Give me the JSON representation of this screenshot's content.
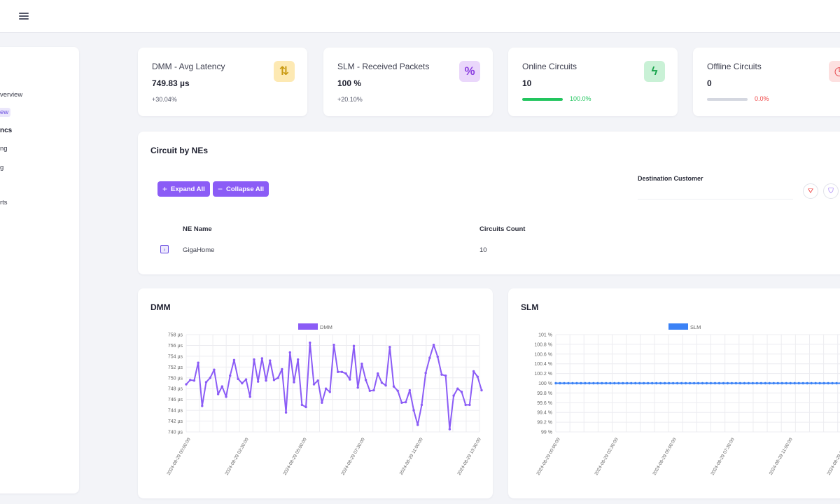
{
  "sidebar": {
    "items": [
      {
        "label": "verview",
        "style": "normal"
      },
      {
        "label": "ew",
        "style": "active"
      },
      {
        "label": "ncs",
        "style": "bold"
      },
      {
        "label": "ng",
        "style": "normal"
      },
      {
        "label": "g",
        "style": "normal"
      },
      {
        "label": "rts",
        "style": "normal"
      }
    ]
  },
  "kpis": [
    {
      "title": "DMM - Avg Latency",
      "value": "749.83 µs",
      "delta": "+30.04%",
      "icon": "arrows-up-down-icon",
      "icon_glyph": "⇅",
      "icon_bg": "#fde9b3",
      "icon_color": "#c99a13"
    },
    {
      "title": "SLM - Received Packets",
      "value": "100 %",
      "delta": "+20.10%",
      "icon": "percent-icon",
      "icon_glyph": "%",
      "icon_bg": "#ead7fb",
      "icon_color": "#8b3fe0"
    },
    {
      "title": "Online Circuits",
      "value": "10",
      "progress": 1.0,
      "progress_label": "100.0%",
      "progress_color": "#22c55e",
      "icon": "bolt-icon",
      "icon_glyph": "ϟ",
      "icon_bg": "#c9f1d6",
      "icon_color": "#16a34a"
    },
    {
      "title": "Offline Circuits",
      "value": "0",
      "progress": 0.0,
      "progress_label": "0.0%",
      "progress_color": "#ef4444",
      "icon": "clock-icon",
      "icon_glyph": "◷",
      "icon_bg": "#fde0e0",
      "icon_color": "#e5484d"
    }
  ],
  "circuits": {
    "title": "Circuit by NEs",
    "expand_label": "Expand All",
    "collapse_label": "Collapse All",
    "filter_label": "Destination Customer",
    "columns": [
      "NE Name",
      "Circuits Count"
    ],
    "rows": [
      {
        "ne": "GigaHome",
        "count": "10"
      }
    ]
  },
  "colors": {
    "accent": "#8b5cf6",
    "dmm_line": "#8b5cf6",
    "slm_line": "#3b82f6"
  },
  "chart_data": [
    {
      "type": "line",
      "title": "DMM",
      "series": [
        {
          "name": "DMM",
          "values": [
            748.8,
            749.6,
            749.5,
            752.8,
            744.8,
            749.2,
            750.0,
            751.5,
            747.0,
            748.4,
            746.5,
            750.4,
            753.3,
            749.8,
            749.0,
            749.7,
            746.5,
            753.4,
            749.3,
            753.6,
            749.5,
            753.2,
            749.6,
            750.0,
            751.6,
            743.6,
            754.7,
            749.2,
            753.4,
            745.0,
            744.6,
            756.5,
            748.8,
            749.5,
            745.4,
            748.0,
            747.4,
            756.1,
            751.1,
            751.1,
            750.8,
            749.7,
            755.9,
            748.2,
            752.6,
            749.6,
            747.6,
            747.7,
            750.8,
            749.1,
            748.6,
            755.7,
            748.4,
            747.6,
            745.4,
            745.5,
            747.7,
            744.0,
            741.3,
            745.0,
            750.9,
            753.7,
            756.1,
            753.9,
            750.6,
            750.4,
            740.5,
            746.7,
            748.0,
            747.4,
            745.0,
            745.0,
            751.2,
            750.2,
            747.7
          ]
        }
      ],
      "x_tick_labels": [
        "2024-08-29 00:00:00",
        "2024-08-29 02:30:00",
        "2024-08-29 05:00:00",
        "2024-08-29 07:30:00",
        "2024-08-29 11:00:00",
        "2024-08-29 13:30:00"
      ],
      "y_tick_labels": [
        "758 µs",
        "756 µs",
        "754 µs",
        "752 µs",
        "750 µs",
        "748 µs",
        "746 µs",
        "744 µs",
        "742 µs",
        "740 µs"
      ],
      "ylim": [
        740,
        758
      ],
      "legend": "top-center",
      "grid": true
    },
    {
      "type": "line",
      "title": "SLM",
      "series": [
        {
          "name": "SLM",
          "values": [
            100,
            100,
            100,
            100,
            100,
            100,
            100,
            100,
            100,
            100,
            100,
            100,
            100,
            100,
            100,
            100,
            100,
            100,
            100,
            100,
            100,
            100,
            100,
            100,
            100,
            100,
            100,
            100,
            100,
            100,
            100,
            100,
            100,
            100,
            100,
            100,
            100,
            100,
            100,
            100,
            100,
            100,
            100,
            100,
            100,
            100,
            100,
            100,
            100,
            100,
            100,
            100,
            100,
            100,
            100,
            100,
            100,
            100,
            100,
            100,
            100,
            100,
            100,
            100,
            100,
            100,
            100,
            100,
            100,
            100,
            100,
            100,
            100,
            100,
            100
          ]
        }
      ],
      "x_tick_labels": [
        "2024-08-29 00:00:00",
        "2024-08-29 02:30:00",
        "2024-08-29 05:00:00",
        "2024-08-29 07:30:00",
        "2024-08-29 11:00:00",
        "2024-08-29 13:30:00"
      ],
      "y_tick_labels": [
        "101 %",
        "100.8 %",
        "100.6 %",
        "100.4 %",
        "100.2 %",
        "100 %",
        "99.8 %",
        "99.6 %",
        "99.4 %",
        "99.2 %",
        "99 %"
      ],
      "ylim": [
        99,
        101
      ],
      "legend": "top-center",
      "grid": true
    }
  ]
}
